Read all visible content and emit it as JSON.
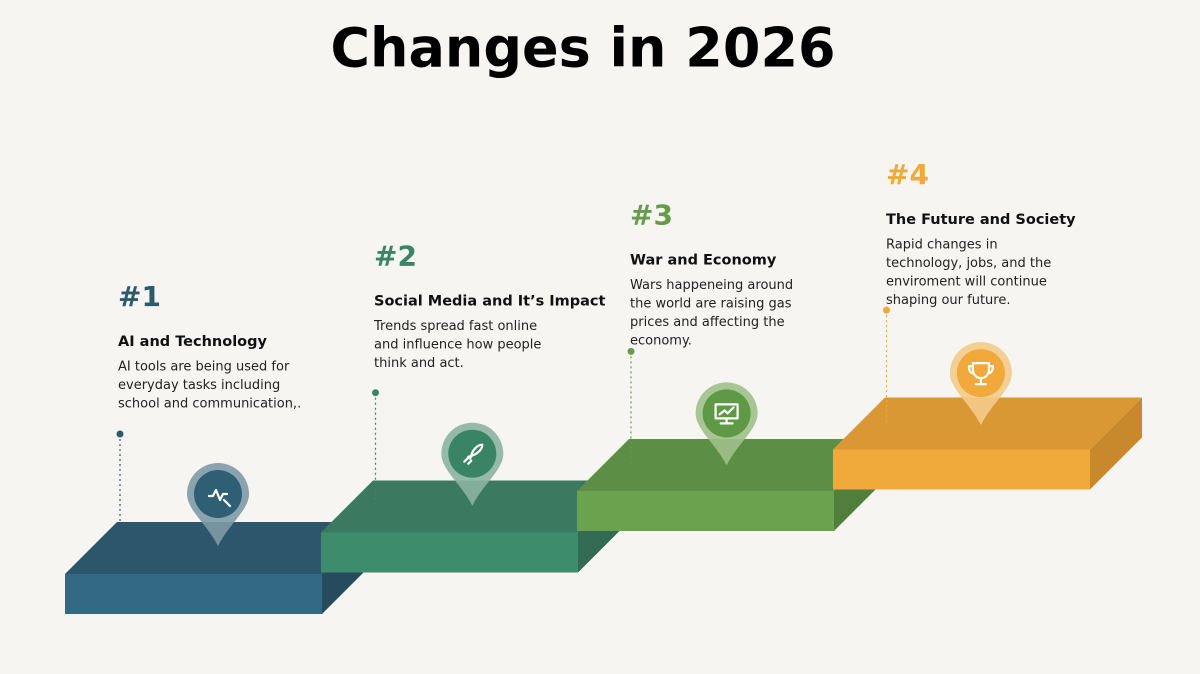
{
  "title": "Changes in 2026",
  "steps": [
    {
      "number": "#1",
      "heading": "AI and Technology",
      "body": [
        "AI tools are being used for",
        "everyday tasks including",
        "school and communication,."
      ]
    },
    {
      "number": "#2",
      "heading": "Social Media and It’s Impact",
      "body": [
        "Trends spread fast online",
        "and influence how people",
        "think and act."
      ]
    },
    {
      "number": "#3",
      "heading": "War and Economy",
      "body": [
        "Wars happeneing around",
        "the world are raising gas",
        "prices and affecting the",
        "economy."
      ]
    },
    {
      "number": "#4",
      "heading": "The Future and Society",
      "body": [
        "Rapid changes in",
        "technology, jobs, and the",
        "enviroment will continue",
        "shaping our future."
      ]
    }
  ]
}
